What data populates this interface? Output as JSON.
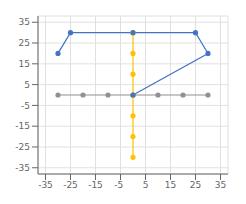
{
  "chart_data": {
    "type": "line",
    "series": [
      {
        "x": [
          -30,
          -20,
          -10,
          0,
          10,
          20,
          30
        ],
        "values": [
          0,
          0,
          0,
          0,
          0,
          0,
          0
        ],
        "color": "#909090",
        "marker": "circle",
        "line_style": "solid"
      },
      {
        "x": [
          0,
          0,
          0,
          0,
          0,
          0,
          0
        ],
        "values": [
          30,
          20,
          10,
          0,
          -10,
          -20,
          -30
        ],
        "color": "#FFC000",
        "marker": "circle",
        "line_style": "solid"
      },
      {
        "x": [
          -30,
          -25,
          0,
          25,
          30,
          0
        ],
        "values": [
          20,
          30,
          30,
          30,
          20,
          0
        ],
        "color": "#4472c4",
        "marker": "circle",
        "line_style": "solid"
      }
    ],
    "xlim": [
      -38,
      38
    ],
    "ylim": [
      -38,
      38
    ],
    "xticks": [
      -35,
      -25,
      -15,
      {
        "value": -5,
        "label": "-5  "
      },
      5,
      15,
      25,
      35
    ],
    "yticks": [
      -35,
      -25,
      -15,
      -5,
      5,
      15,
      25,
      35
    ],
    "grid": true
  }
}
